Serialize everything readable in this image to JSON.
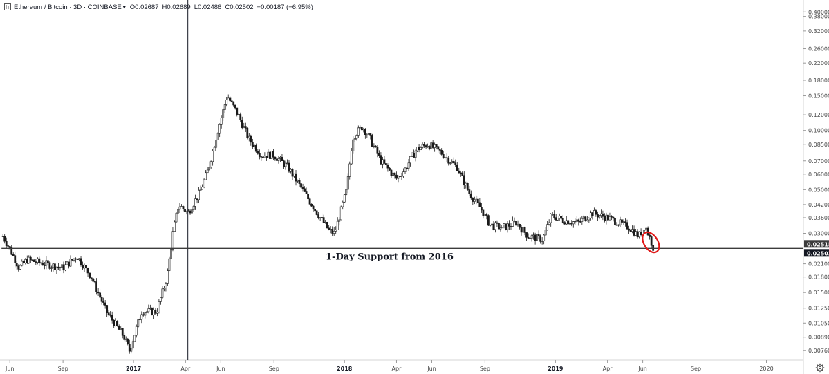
{
  "header": {
    "symbol": "Ethereum / Bitcoin · 3D · COINBASE",
    "open": "O0.02687",
    "high": "H0.02689",
    "low": "L0.02486",
    "close": "C0.02502",
    "change": "−0.00187 (−6.95%)"
  },
  "colors": {
    "candle": "#1a1a1a",
    "support_line": "#3c3c3c",
    "highlight_circle": "#e01818",
    "price_label_bg": "#3c3c3c"
  },
  "icons": {
    "symbol": "compare-icon",
    "settings": "gear-icon",
    "dropdown": "chevron-down-icon"
  },
  "chart_data": {
    "type": "line",
    "style": "candlestick",
    "series": [
      {
        "x": [
          "2016-05-20",
          "2016-06-01",
          "2016-06-17",
          "2016-07-01",
          "2016-08-01",
          "2016-09-01",
          "2016-09-25",
          "2016-10-20",
          "2016-11-15",
          "2016-12-15",
          "2016-12-25",
          "2017-01-15",
          "2017-02-10",
          "2017-02-28",
          "2017-03-10",
          "2017-03-20",
          "2017-04-05",
          "2017-04-25",
          "2017-05-10",
          "2017-05-25",
          "2017-06-12",
          "2017-07-01",
          "2017-07-20",
          "2017-08-10",
          "2017-09-01",
          "2017-09-25",
          "2017-10-20",
          "2017-11-15",
          "2017-12-05",
          "2017-12-15",
          "2018-01-05",
          "2018-01-15",
          "2018-02-01",
          "2018-02-15",
          "2018-03-05",
          "2018-04-01",
          "2018-04-15",
          "2018-05-05",
          "2018-05-25",
          "2018-06-15",
          "2018-07-15",
          "2018-08-05",
          "2018-08-25",
          "2018-09-10",
          "2018-10-01",
          "2018-10-25",
          "2018-11-15",
          "2018-12-10",
          "2018-12-25",
          "2019-01-15",
          "2019-02-10",
          "2019-03-05",
          "2019-04-01",
          "2019-04-20",
          "2019-05-10",
          "2019-05-25",
          "2019-06-05",
          "2019-06-20"
        ],
        "values": [
          0.029,
          0.025,
          0.02,
          0.022,
          0.021,
          0.02,
          0.023,
          0.018,
          0.012,
          0.009,
          0.0076,
          0.012,
          0.012,
          0.018,
          0.03,
          0.042,
          0.038,
          0.048,
          0.063,
          0.095,
          0.15,
          0.12,
          0.09,
          0.075,
          0.075,
          0.065,
          0.05,
          0.038,
          0.031,
          0.03,
          0.05,
          0.092,
          0.105,
          0.09,
          0.07,
          0.057,
          0.063,
          0.08,
          0.085,
          0.078,
          0.065,
          0.048,
          0.04,
          0.033,
          0.032,
          0.034,
          0.029,
          0.028,
          0.037,
          0.035,
          0.034,
          0.038,
          0.036,
          0.034,
          0.032,
          0.029,
          0.033,
          0.025
        ]
      }
    ],
    "annotations": {
      "support_level": 0.02515,
      "support_text": "1-Day Support from 2016",
      "highlight": "red circle around the latest candles near 0.0250"
    },
    "scale": "log",
    "ylim": [
      0.0068,
      0.46
    ],
    "y_ticks": [
      "0.40000",
      "0.38000",
      "0.32000",
      "0.26000",
      "0.22000",
      "0.18000",
      "0.15000",
      "0.12000",
      "0.10000",
      "0.08500",
      "0.07000",
      "0.06000",
      "0.05000",
      "0.04200",
      "0.03600",
      "0.03000",
      "0.02100",
      "0.01800",
      "0.01500",
      "0.01250",
      "0.01050",
      "0.00890",
      "0.00760"
    ],
    "y_tick_values": [
      0.4,
      0.38,
      0.32,
      0.26,
      0.22,
      0.18,
      0.15,
      0.12,
      0.1,
      0.085,
      0.07,
      0.06,
      0.05,
      0.042,
      0.036,
      0.03,
      0.021,
      0.018,
      0.015,
      0.0125,
      0.0105,
      0.0089,
      0.0076
    ],
    "price_labels": [
      "0.02515",
      "0.02502"
    ],
    "x_ticks": [
      {
        "label": "Jun",
        "date": "2016-06-01",
        "bold": false
      },
      {
        "label": "Sep",
        "date": "2016-09-01",
        "bold": false
      },
      {
        "label": "2017",
        "date": "2017-01-01",
        "bold": true
      },
      {
        "label": "Apr",
        "date": "2017-04-01",
        "bold": false
      },
      {
        "label": "Jun",
        "date": "2017-06-01",
        "bold": false
      },
      {
        "label": "Sep",
        "date": "2017-09-01",
        "bold": false
      },
      {
        "label": "2018",
        "date": "2018-01-01",
        "bold": true
      },
      {
        "label": "Apr",
        "date": "2018-04-01",
        "bold": false
      },
      {
        "label": "Jun",
        "date": "2018-06-01",
        "bold": false
      },
      {
        "label": "Sep",
        "date": "2018-09-01",
        "bold": false
      },
      {
        "label": "2019",
        "date": "2019-01-01",
        "bold": true
      },
      {
        "label": "Apr",
        "date": "2019-04-01",
        "bold": false
      },
      {
        "label": "Jun",
        "date": "2019-06-01",
        "bold": false
      },
      {
        "label": "Sep",
        "date": "2019-09-01",
        "bold": false
      },
      {
        "label": "2020",
        "date": "2020-01-01",
        "bold": false
      }
    ],
    "xlim": [
      "2016-05-15",
      "2020-03-05"
    ],
    "crosshair_date": "2017-04-05",
    "grid": false,
    "legend": "none"
  }
}
